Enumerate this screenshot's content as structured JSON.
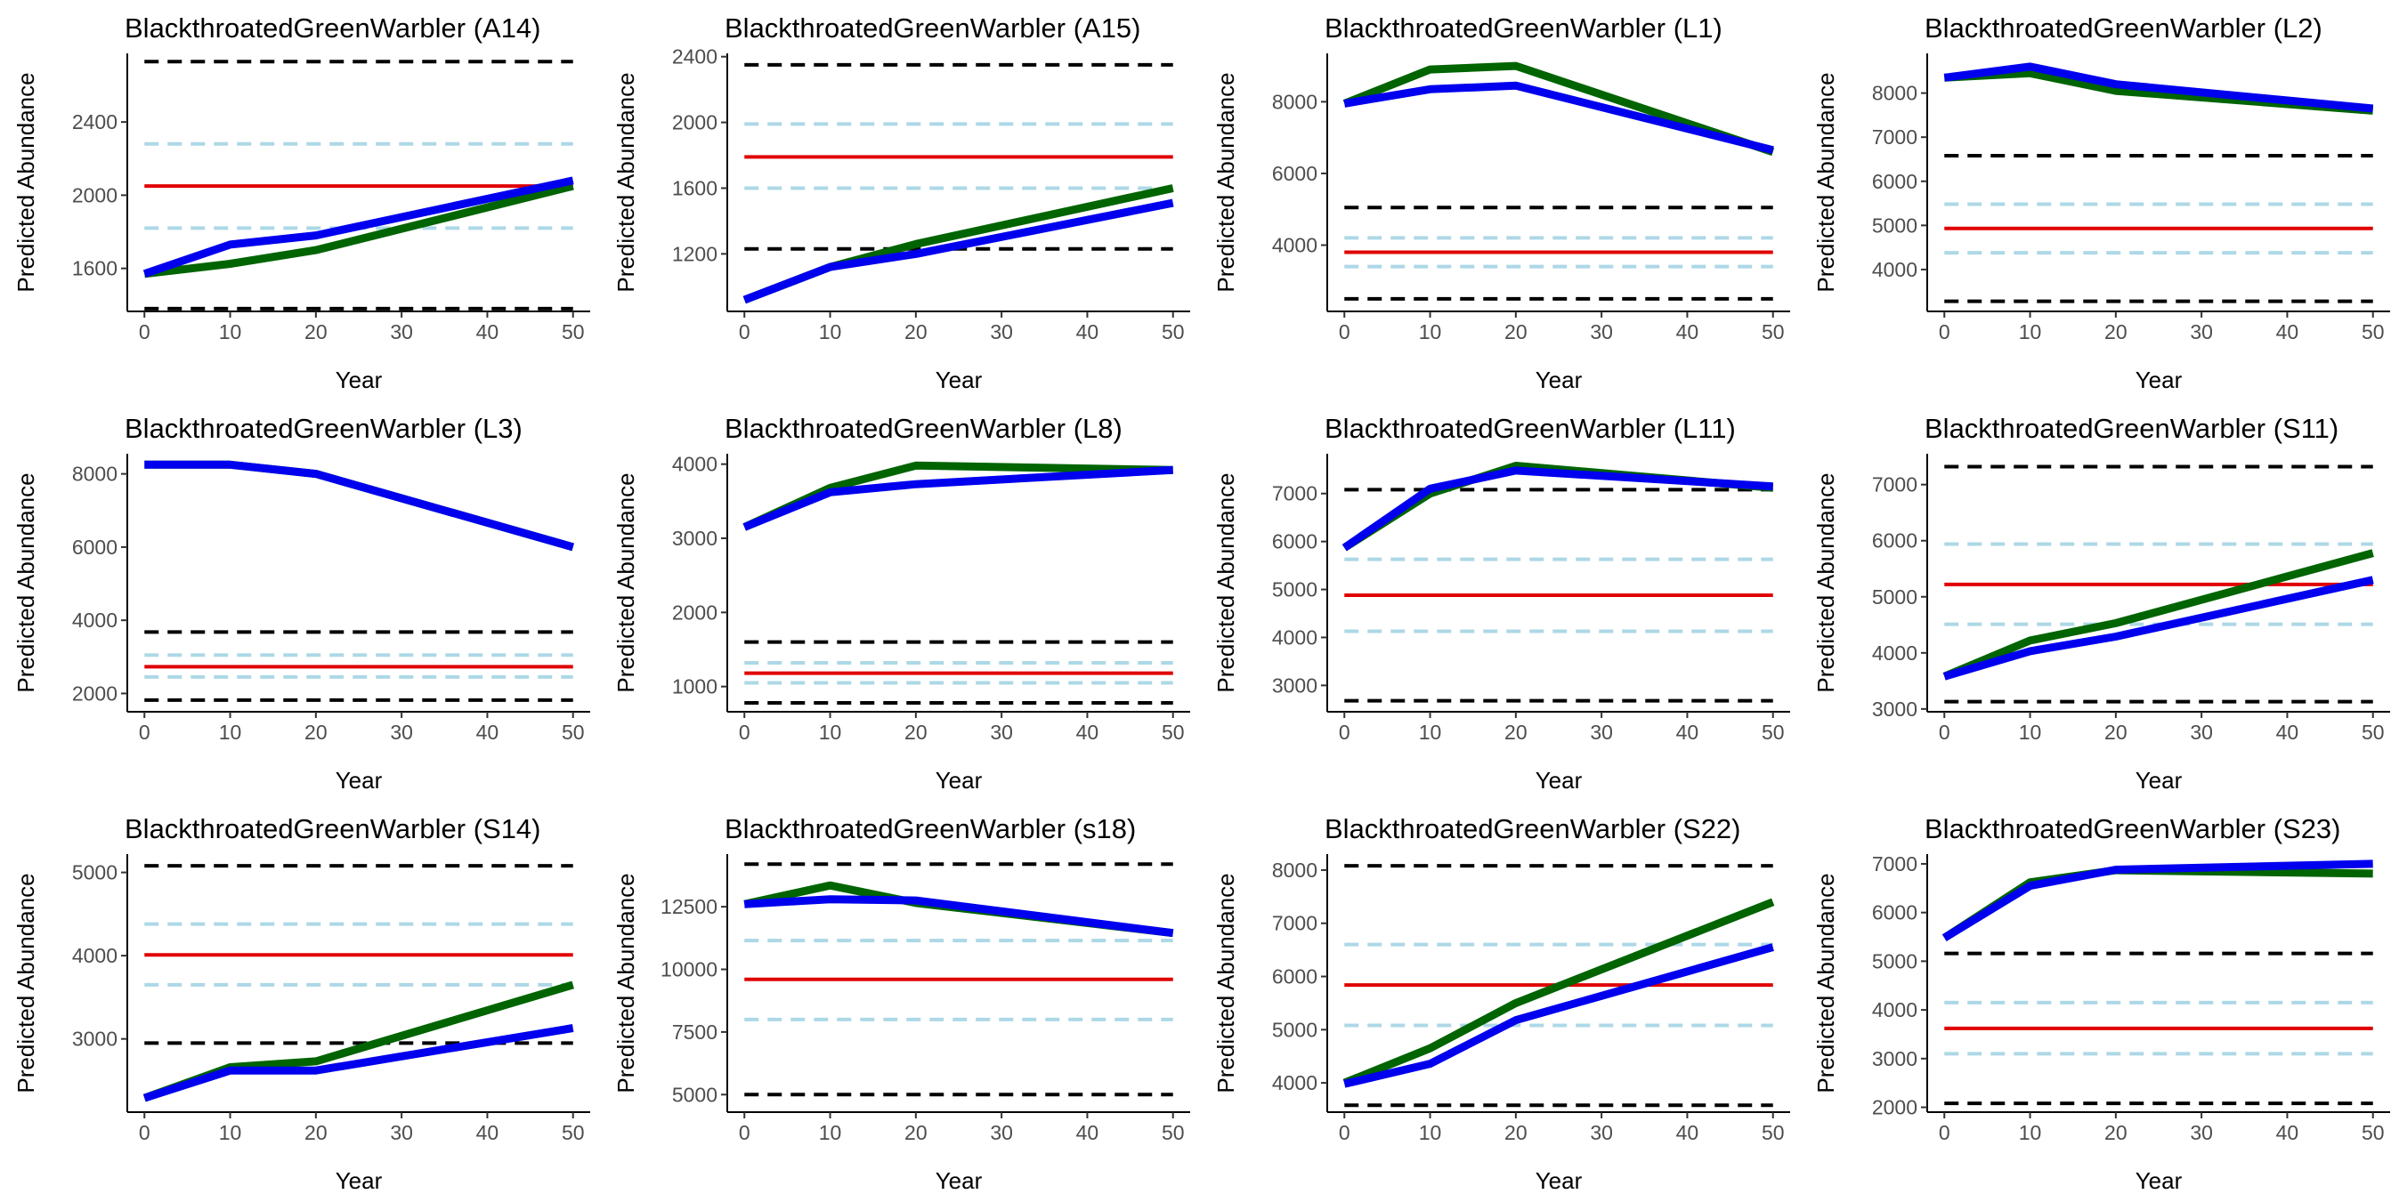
{
  "colors": {
    "sim_green": "#006400",
    "sim_blue": "#0000ee",
    "mean_red": "#e00000",
    "inner_band": "#add8e6",
    "outer_band": "#000000"
  },
  "chart_data": [
    {
      "type": "line",
      "title": "BlackthroatedGreenWarbler (A14)",
      "xlabel": "Year",
      "ylabel": "Predicted Abundance",
      "x": [
        0,
        10,
        20,
        50
      ],
      "xlim": [
        -2,
        52
      ],
      "xticks": [
        0,
        10,
        20,
        30,
        40,
        50
      ],
      "ylim": [
        1365,
        2775
      ],
      "yticks": [
        1600,
        2000,
        2400
      ],
      "series": [
        {
          "name": "green",
          "values": [
            1570,
            1625,
            1700,
            2050
          ]
        },
        {
          "name": "blue",
          "values": [
            1570,
            1730,
            1780,
            2080
          ]
        }
      ],
      "reference": {
        "mean": 2050,
        "inner": [
          1820,
          2280
        ],
        "outer": [
          1380,
          2730
        ]
      }
    },
    {
      "type": "line",
      "title": "BlackthroatedGreenWarbler (A15)",
      "xlabel": "Year",
      "ylabel": "Predicted Abundance",
      "x": [
        0,
        10,
        20,
        50
      ],
      "xlim": [
        -2,
        52
      ],
      "xticks": [
        0,
        10,
        20,
        30,
        40,
        50
      ],
      "ylim": [
        850,
        2420
      ],
      "yticks": [
        1200,
        1600,
        2000,
        2400
      ],
      "series": [
        {
          "name": "green",
          "values": [
            920,
            1120,
            1260,
            1600
          ]
        },
        {
          "name": "blue",
          "values": [
            920,
            1120,
            1200,
            1510
          ]
        }
      ],
      "reference": {
        "mean": 1790,
        "inner": [
          1600,
          1990
        ],
        "outer": [
          1230,
          2350
        ]
      }
    },
    {
      "type": "line",
      "title": "BlackthroatedGreenWarbler (L1)",
      "xlabel": "Year",
      "ylabel": "Predicted Abundance",
      "x": [
        0,
        10,
        20,
        50
      ],
      "xlim": [
        -2,
        52
      ],
      "xticks": [
        0,
        10,
        20,
        30,
        40,
        50
      ],
      "ylim": [
        2150,
        9350
      ],
      "yticks": [
        4000,
        6000,
        8000
      ],
      "series": [
        {
          "name": "green",
          "values": [
            7950,
            8900,
            9000,
            6600
          ]
        },
        {
          "name": "blue",
          "values": [
            7950,
            8350,
            8450,
            6650
          ]
        }
      ],
      "reference": {
        "mean": 3800,
        "inner": [
          3400,
          4200
        ],
        "outer": [
          2500,
          5050
        ]
      }
    },
    {
      "type": "line",
      "title": "BlackthroatedGreenWarbler (L2)",
      "xlabel": "Year",
      "ylabel": "Predicted Abundance",
      "x": [
        0,
        10,
        20,
        50
      ],
      "xlim": [
        -2,
        52
      ],
      "xticks": [
        0,
        10,
        20,
        30,
        40,
        50
      ],
      "ylim": [
        3050,
        8900
      ],
      "yticks": [
        4000,
        5000,
        6000,
        7000,
        8000
      ],
      "series": [
        {
          "name": "green",
          "values": [
            8350,
            8450,
            8050,
            7600
          ]
        },
        {
          "name": "blue",
          "values": [
            8350,
            8600,
            8200,
            7650
          ]
        }
      ],
      "reference": {
        "mean": 4930,
        "inner": [
          4380,
          5480
        ],
        "outer": [
          3280,
          6580
        ]
      }
    },
    {
      "type": "line",
      "title": "BlackthroatedGreenWarbler (L3)",
      "xlabel": "Year",
      "ylabel": "Predicted Abundance",
      "x": [
        0,
        10,
        20,
        50
      ],
      "xlim": [
        -2,
        52
      ],
      "xticks": [
        0,
        10,
        20,
        30,
        40,
        50
      ],
      "ylim": [
        1500,
        8550
      ],
      "yticks": [
        2000,
        4000,
        6000,
        8000
      ],
      "series": [
        {
          "name": "green",
          "values": [
            8250,
            8250,
            8000,
            6000
          ]
        },
        {
          "name": "blue",
          "values": [
            8250,
            8250,
            8000,
            6000
          ]
        }
      ],
      "reference": {
        "mean": 2730,
        "inner": [
          2450,
          3050
        ],
        "outer": [
          1820,
          3680
        ]
      }
    },
    {
      "type": "line",
      "title": "BlackthroatedGreenWarbler (L8)",
      "xlabel": "Year",
      "ylabel": "Predicted Abundance",
      "x": [
        0,
        10,
        20,
        50
      ],
      "xlim": [
        -2,
        52
      ],
      "xticks": [
        0,
        10,
        20,
        30,
        40,
        50
      ],
      "ylim": [
        660,
        4140
      ],
      "yticks": [
        1000,
        2000,
        3000,
        4000
      ],
      "series": [
        {
          "name": "green",
          "values": [
            3150,
            3680,
            3980,
            3920
          ]
        },
        {
          "name": "blue",
          "values": [
            3150,
            3620,
            3730,
            3920
          ]
        }
      ],
      "reference": {
        "mean": 1180,
        "inner": [
          1050,
          1320
        ],
        "outer": [
          780,
          1600
        ]
      }
    },
    {
      "type": "line",
      "title": "BlackthroatedGreenWarbler (L11)",
      "xlabel": "Year",
      "ylabel": "Predicted Abundance",
      "x": [
        0,
        10,
        20,
        50
      ],
      "xlim": [
        -2,
        52
      ],
      "xticks": [
        0,
        10,
        20,
        30,
        40,
        50
      ],
      "ylim": [
        2450,
        7830
      ],
      "yticks": [
        3000,
        4000,
        5000,
        6000,
        7000
      ],
      "series": [
        {
          "name": "green",
          "values": [
            5870,
            7000,
            7580,
            7120
          ]
        },
        {
          "name": "blue",
          "values": [
            5870,
            7100,
            7480,
            7150
          ]
        }
      ],
      "reference": {
        "mean": 4880,
        "inner": [
          4130,
          5630
        ],
        "outer": [
          2680,
          7080
        ]
      }
    },
    {
      "type": "line",
      "title": "BlackthroatedGreenWarbler (S11)",
      "xlabel": "Year",
      "ylabel": "Predicted Abundance",
      "x": [
        0,
        10,
        20,
        50
      ],
      "xlim": [
        -2,
        52
      ],
      "xticks": [
        0,
        10,
        20,
        30,
        40,
        50
      ],
      "ylim": [
        2950,
        7550
      ],
      "yticks": [
        3000,
        4000,
        5000,
        6000,
        7000
      ],
      "series": [
        {
          "name": "green",
          "values": [
            3580,
            4220,
            4530,
            5780
          ]
        },
        {
          "name": "blue",
          "values": [
            3580,
            4030,
            4290,
            5300
          ]
        }
      ],
      "reference": {
        "mean": 5220,
        "inner": [
          4510,
          5940
        ],
        "outer": [
          3130,
          7320
        ]
      }
    },
    {
      "type": "line",
      "title": "BlackthroatedGreenWarbler (S14)",
      "xlabel": "Year",
      "ylabel": "Predicted Abundance",
      "x": [
        0,
        10,
        20,
        50
      ],
      "xlim": [
        -2,
        52
      ],
      "xticks": [
        0,
        10,
        20,
        30,
        40,
        50
      ],
      "ylim": [
        2120,
        5220
      ],
      "yticks": [
        3000,
        4000,
        5000
      ],
      "series": [
        {
          "name": "green",
          "values": [
            2290,
            2660,
            2730,
            3650
          ]
        },
        {
          "name": "blue",
          "values": [
            2290,
            2620,
            2620,
            3130
          ]
        }
      ],
      "reference": {
        "mean": 4010,
        "inner": [
          3650,
          4380
        ],
        "outer": [
          2950,
          5080
        ]
      }
    },
    {
      "type": "line",
      "title": "BlackthroatedGreenWarbler (s18)",
      "xlabel": "Year",
      "ylabel": "Predicted Abundance",
      "x": [
        0,
        10,
        20,
        50
      ],
      "xlim": [
        -2,
        52
      ],
      "xticks": [
        0,
        10,
        20,
        30,
        40,
        50
      ],
      "ylim": [
        4300,
        14600
      ],
      "yticks": [
        5000,
        7500,
        10000,
        12500
      ],
      "series": [
        {
          "name": "green",
          "values": [
            12600,
            13350,
            12650,
            11450
          ]
        },
        {
          "name": "blue",
          "values": [
            12600,
            12800,
            12750,
            11450
          ]
        }
      ],
      "reference": {
        "mean": 9600,
        "inner": [
          8000,
          11150
        ],
        "outer": [
          5000,
          14200
        ]
      }
    },
    {
      "type": "line",
      "title": "BlackthroatedGreenWarbler (S22)",
      "xlabel": "Year",
      "ylabel": "Predicted Abundance",
      "x": [
        0,
        10,
        20,
        50
      ],
      "xlim": [
        -2,
        52
      ],
      "xticks": [
        0,
        10,
        20,
        30,
        40,
        50
      ],
      "ylim": [
        3450,
        8300
      ],
      "yticks": [
        4000,
        5000,
        6000,
        7000,
        8000
      ],
      "series": [
        {
          "name": "green",
          "values": [
            4000,
            4650,
            5500,
            7400
          ]
        },
        {
          "name": "blue",
          "values": [
            3980,
            4360,
            5180,
            6550
          ]
        }
      ],
      "reference": {
        "mean": 5840,
        "inner": [
          5080,
          6600
        ],
        "outer": [
          3580,
          8080
        ]
      }
    },
    {
      "type": "line",
      "title": "BlackthroatedGreenWarbler (S23)",
      "xlabel": "Year",
      "ylabel": "Predicted Abundance",
      "x": [
        0,
        10,
        20,
        50
      ],
      "xlim": [
        -2,
        52
      ],
      "xticks": [
        0,
        10,
        20,
        30,
        40,
        50
      ],
      "ylim": [
        1900,
        7200
      ],
      "yticks": [
        2000,
        3000,
        4000,
        5000,
        6000,
        7000
      ],
      "series": [
        {
          "name": "green",
          "values": [
            5480,
            6620,
            6870,
            6800
          ]
        },
        {
          "name": "blue",
          "values": [
            5480,
            6550,
            6880,
            7000
          ]
        }
      ],
      "reference": {
        "mean": 3620,
        "inner": [
          3100,
          4150
        ],
        "outer": [
          2080,
          5160
        ]
      }
    }
  ]
}
